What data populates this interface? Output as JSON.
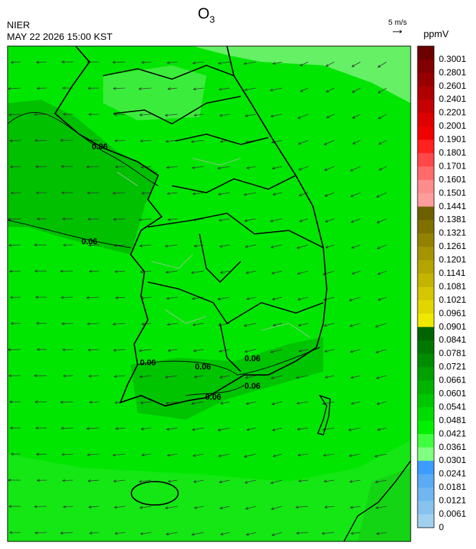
{
  "header": {
    "title": "O",
    "title_subscript": "3",
    "source": "NIER",
    "datetime": "MAY 22 2026 15:00 KST"
  },
  "wind_scale": {
    "label": "5 m/s"
  },
  "colorbar": {
    "unit": "ppmV",
    "labels": [
      "0.3001",
      "0.2801",
      "0.2601",
      "0.2401",
      "0.2201",
      "0.2001",
      "0.1901",
      "0.1801",
      "0.1701",
      "0.1601",
      "0.1501",
      "0.1441",
      "0.1381",
      "0.1321",
      "0.1261",
      "0.1201",
      "0.1141",
      "0.1081",
      "0.1021",
      "0.0961",
      "0.0901",
      "0.0841",
      "0.0781",
      "0.0721",
      "0.0661",
      "0.0601",
      "0.0541",
      "0.0481",
      "0.0421",
      "0.0361",
      "0.0301",
      "0.0241",
      "0.0181",
      "0.0121",
      "0.0061",
      "0"
    ],
    "colors": [
      "#6a0000",
      "#820000",
      "#980000",
      "#ae0000",
      "#c40000",
      "#dc0000",
      "#f00000",
      "#ff2020",
      "#ff4848",
      "#ff6a6a",
      "#ff8c8c",
      "#ff9c9c",
      "#6e6000",
      "#807000",
      "#928200",
      "#a49400",
      "#b4a400",
      "#c4b400",
      "#d4c600",
      "#e2d600",
      "#f0e800",
      "#006400",
      "#007800",
      "#008c00",
      "#00a000",
      "#00b400",
      "#00c800",
      "#00dc00",
      "#00f000",
      "#40ff40",
      "#80ff80",
      "#3c9cff",
      "#5aaaf4",
      "#70b6f0",
      "#88c2ee",
      "#a0d0ee"
    ]
  },
  "contour_labels": [
    "0.06",
    "0.06",
    "0.06",
    "0.06",
    "0.06",
    "0.06",
    "0.06"
  ]
}
